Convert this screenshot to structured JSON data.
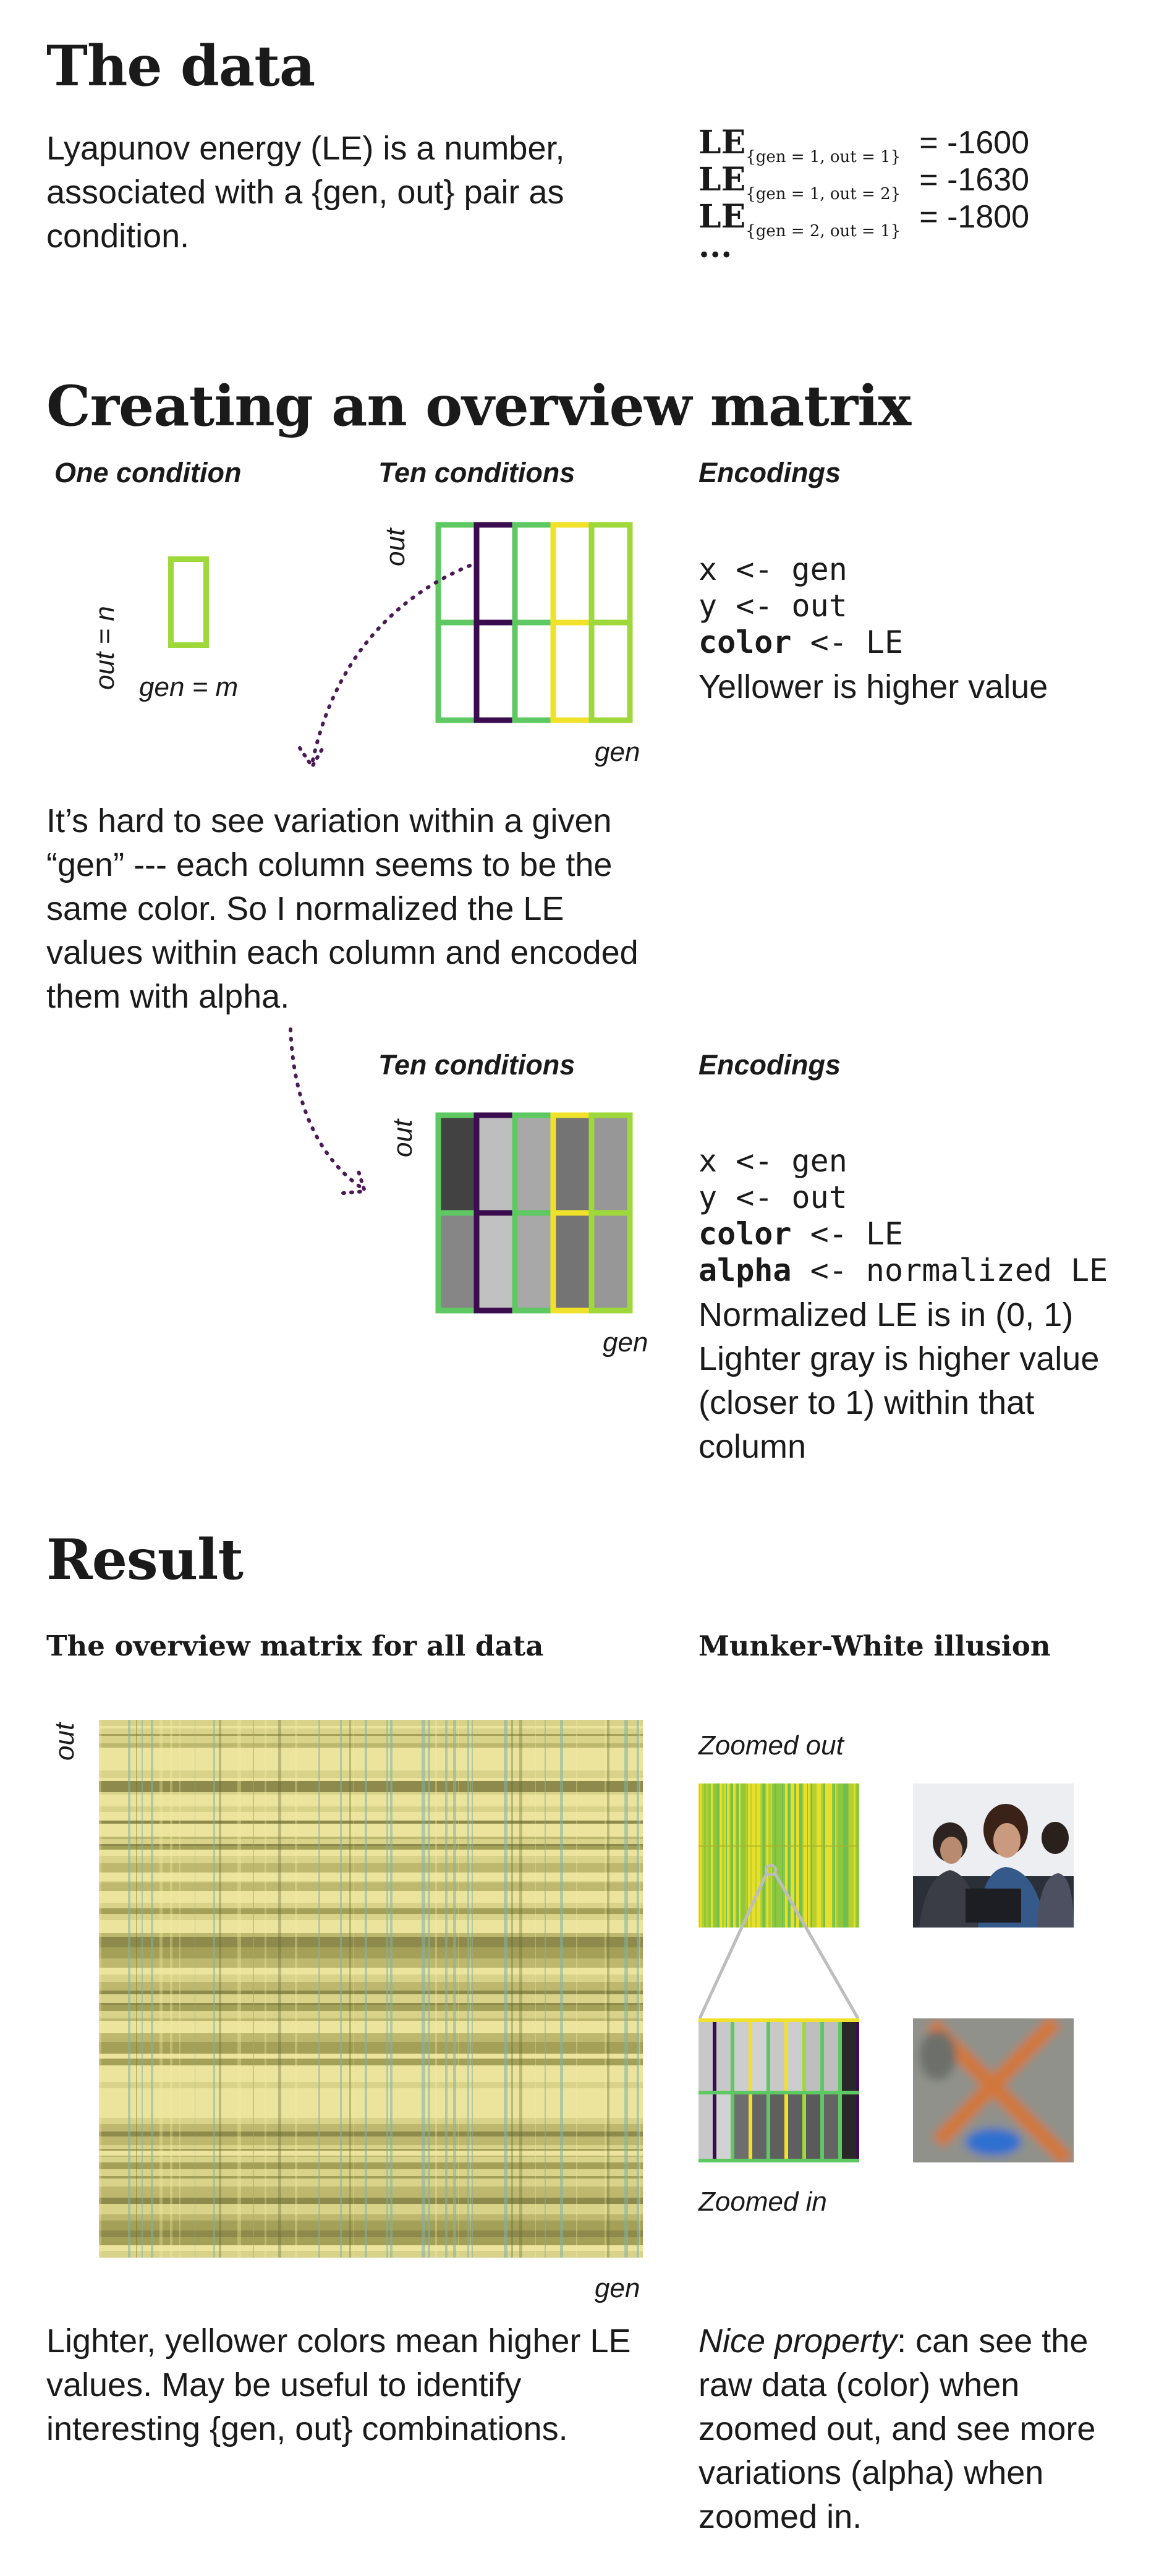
{
  "sections": {
    "data": {
      "title": "The data",
      "description": "Lyapunov energy (LE) is a number, associated with a {gen, out} pair as condition.",
      "examples": [
        {
          "key": "LE",
          "sub": "{gen = 1, out = 1}",
          "value": "= -1600"
        },
        {
          "key": "LE",
          "sub": "{gen = 1, out = 2}",
          "value": "= -1630"
        },
        {
          "key": "LE",
          "sub": "{gen = 2, out = 1}",
          "value": "= -1800"
        }
      ],
      "ellipsis": "..."
    },
    "overview": {
      "title": "Creating an overview matrix",
      "one_condition": {
        "label": "One condition",
        "y_axis": "out = n",
        "x_axis": "gen = m"
      },
      "ten_conditions_1": {
        "label": "Ten conditions",
        "y_axis": "out",
        "x_axis": "gen"
      },
      "encodings_1": {
        "label": "Encodings",
        "lines": [
          {
            "name": "x",
            "rest": " <- gen"
          },
          {
            "name": "y",
            "rest": " <- out"
          },
          {
            "name": "color",
            "rest": " <- LE"
          }
        ],
        "note": "Yellower is higher value"
      },
      "explanation": "It’s hard to see variation within a given “gen” --- each column seems to be the same color. So I normalized the LE values within each column and encoded them with alpha.",
      "ten_conditions_2": {
        "label": "Ten conditions",
        "y_axis": "out",
        "x_axis": "gen"
      },
      "encodings_2": {
        "label": "Encodings",
        "lines": [
          {
            "name": "x",
            "rest": " <- gen"
          },
          {
            "name": "y",
            "rest": " <- out"
          },
          {
            "name": "color",
            "rest": " <- LE"
          },
          {
            "name": "alpha",
            "rest": " <- normalized LE"
          }
        ],
        "note": "Normalized LE is in (0, 1) Lighter gray is higher value (closer to 1) within that column"
      }
    },
    "result": {
      "title": "Result",
      "matrix_label": "The overview matrix for all data",
      "matrix_y_axis": "out",
      "matrix_x_axis": "gen",
      "illusion_label": "Munker-White illusion",
      "zoomed_out": "Zoomed out",
      "zoomed_in": "Zoomed in",
      "caption_left": "Lighter, yellower colors mean higher LE values. May be useful to identify interesting {gen, out} combinations.",
      "caption_right_em": "Nice property",
      "caption_right": ": can see the raw data (color) when zoomed out, and see more variations (alpha)  when zoomed in."
    }
  },
  "colors": {
    "dark_purple": "#3b0d4f",
    "green": "#5ec962",
    "yellow": "#f0e22a",
    "light_green": "#9fd83a",
    "dotted_arrow": "#4a1a55",
    "matrix_base": "#d9d68c"
  },
  "cells_small_grid": {
    "columns": [
      "green",
      "dark_purple",
      "green",
      "yellow",
      "light_green"
    ],
    "rows": 2
  },
  "alpha_grid": {
    "columns": [
      "green",
      "dark_purple",
      "green",
      "yellow",
      "light_green"
    ],
    "grays": [
      [
        0.85,
        0.45
      ],
      [
        0.12,
        0.1
      ],
      [
        0.25,
        0.25
      ],
      [
        0.55,
        0.55
      ],
      [
        0.35,
        0.35
      ]
    ]
  }
}
